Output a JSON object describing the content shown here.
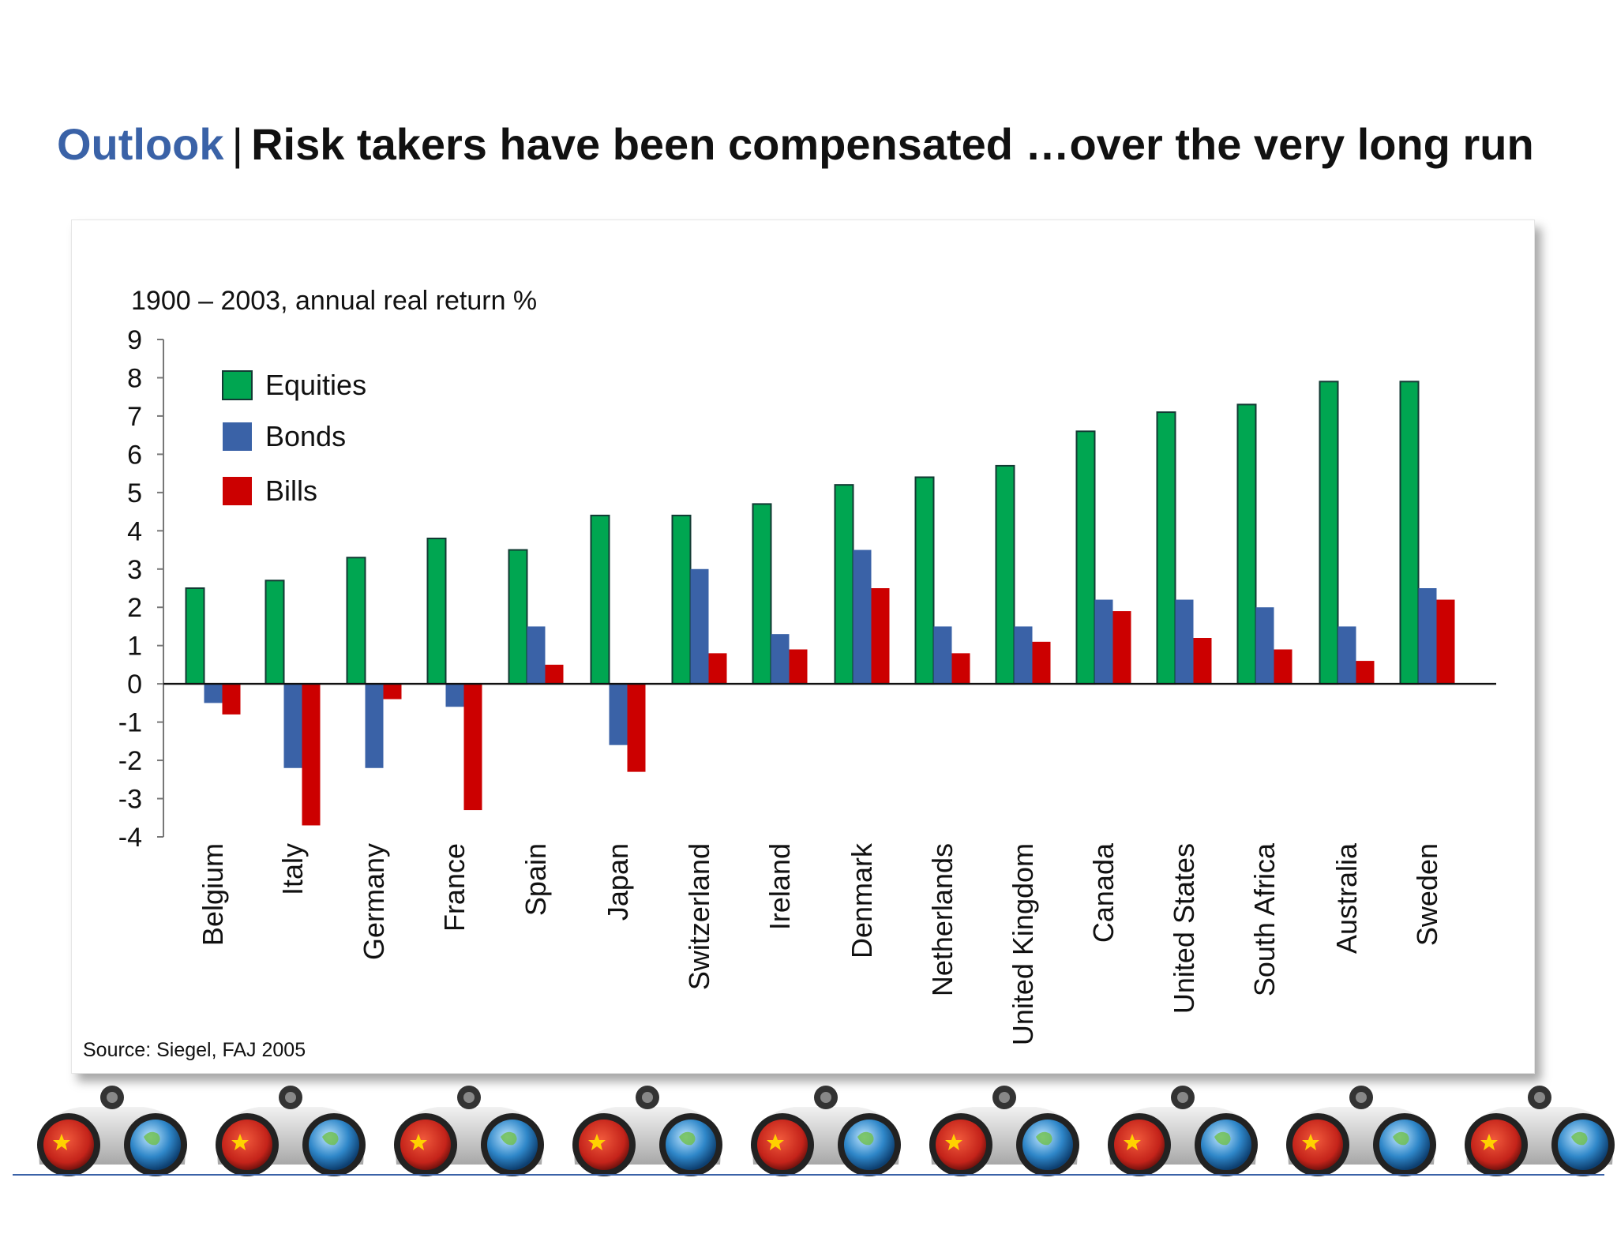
{
  "header": {
    "section": "Outlook",
    "separator": "|",
    "title": "Risk takers have been compensated …over the very long run"
  },
  "source": "Source: Siegel, FAJ 2005",
  "colors": {
    "accent": "#3a62a7",
    "equities": "#00a651",
    "bonds": "#3a62a7",
    "bills": "#cc0000",
    "bar_outline": "#123a33"
  },
  "footer_icon": "binoculars-globe-flag-icon",
  "chart_data": {
    "type": "bar",
    "ylabel": "1900 – 2003, annual real return %",
    "ylim": [
      -4,
      9
    ],
    "yticks": [
      9,
      8,
      7,
      6,
      5,
      4,
      3,
      2,
      1,
      0,
      -1,
      -2,
      -3,
      -4
    ],
    "legend_position": "top-left",
    "categories": [
      "Belgium",
      "Italy",
      "Germany",
      "France",
      "Spain",
      "Japan",
      "Switzerland",
      "Ireland",
      "Denmark",
      "Netherlands",
      "United Kingdom",
      "Canada",
      "United States",
      "South Africa",
      "Australia",
      "Sweden"
    ],
    "series": [
      {
        "name": "Equities",
        "color": "#00a651",
        "values": [
          2.5,
          2.7,
          3.3,
          3.8,
          3.5,
          4.4,
          4.4,
          4.7,
          5.2,
          5.4,
          5.7,
          6.6,
          7.1,
          7.3,
          7.9,
          7.9
        ]
      },
      {
        "name": "Bonds",
        "color": "#3a62a7",
        "values": [
          -0.5,
          -2.2,
          -2.2,
          -0.6,
          1.5,
          -1.6,
          3.0,
          1.3,
          3.5,
          1.5,
          1.5,
          2.2,
          2.2,
          2.0,
          1.5,
          2.5
        ]
      },
      {
        "name": "Bills",
        "color": "#cc0000",
        "values": [
          -0.8,
          -3.7,
          -0.4,
          -3.3,
          0.5,
          -2.3,
          0.8,
          0.9,
          2.5,
          0.8,
          1.1,
          1.9,
          1.2,
          0.9,
          0.6,
          2.2
        ]
      }
    ]
  }
}
